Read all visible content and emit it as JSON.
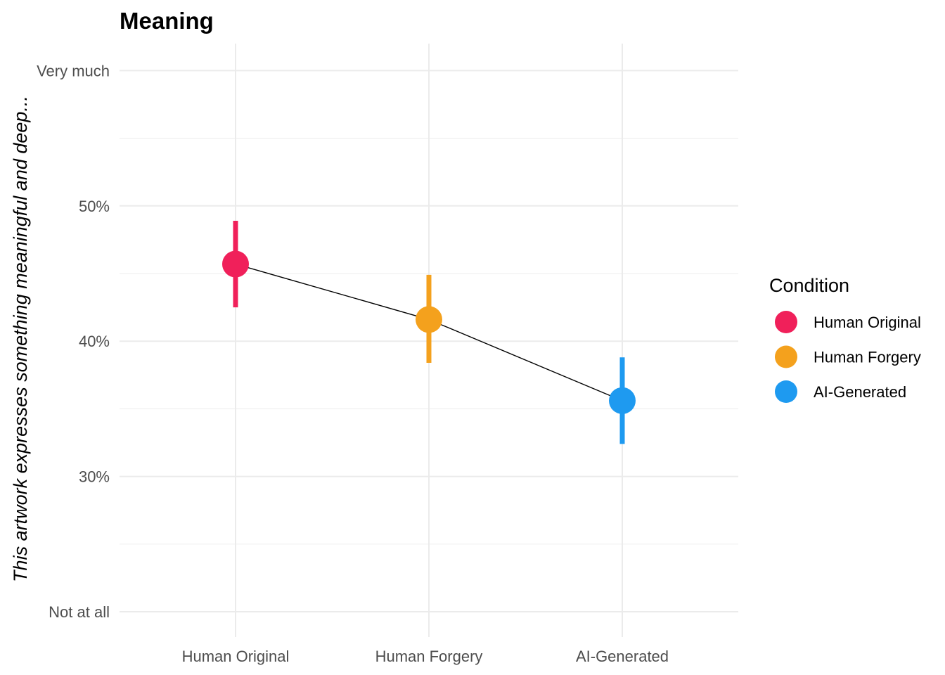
{
  "chart_data": {
    "type": "scatter",
    "title": "Meaning",
    "xlabel": "",
    "ylabel": "This artwork expresses something meaningful and deep...",
    "categories": [
      "Human Original",
      "Human Forgery",
      "AI-Generated"
    ],
    "y_ticks": [
      {
        "value": 0.2,
        "label": "Not at all"
      },
      {
        "value": 0.3,
        "label": "30%"
      },
      {
        "value": 0.4,
        "label": "40%"
      },
      {
        "value": 0.5,
        "label": "50%"
      },
      {
        "value": 0.6,
        "label": "Very much"
      }
    ],
    "ylim": [
      0.18,
      0.62
    ],
    "grid": true,
    "connecting_line": true,
    "series": [
      {
        "category": "Human Original",
        "value": 0.457,
        "ci_low": 0.425,
        "ci_high": 0.489,
        "color": "#F0205A"
      },
      {
        "category": "Human Forgery",
        "value": 0.416,
        "ci_low": 0.384,
        "ci_high": 0.449,
        "color": "#F4A11D"
      },
      {
        "category": "AI-Generated",
        "value": 0.356,
        "ci_low": 0.324,
        "ci_high": 0.388,
        "color": "#1E9AF0"
      }
    ],
    "legend": {
      "title": "Condition",
      "position": "right",
      "items": [
        "Human Original",
        "Human Forgery",
        "AI-Generated"
      ]
    }
  }
}
